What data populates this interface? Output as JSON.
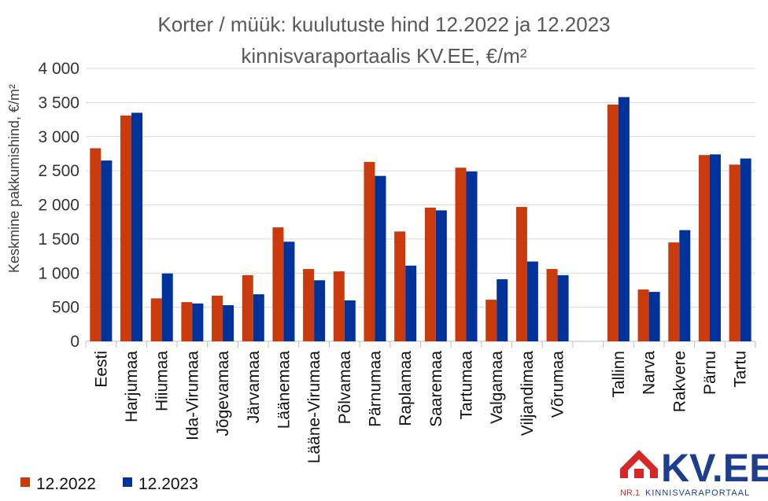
{
  "chart_data": {
    "type": "bar",
    "title": "Korter / müük: kuulutuste hind 12.2022 ja 12.2023",
    "subtitle": "kinnisvaraportaalis KV.EE, €/m²",
    "ylabel": "Keskmine pakkumishind, €/m²",
    "xlabel": "",
    "ylim": [
      0,
      4000
    ],
    "y_ticks": [
      0,
      500,
      1000,
      1500,
      2000,
      2500,
      3000,
      3500,
      4000
    ],
    "y_tick_labels": [
      "0",
      "500",
      "1 000",
      "1 500",
      "2 000",
      "2 500",
      "3 000",
      "3 500",
      "4 000"
    ],
    "grid": true,
    "legend_position": "bottom-left",
    "categories": [
      "Eesti",
      "Harjumaa",
      "Hiiumaa",
      "Ida-Virumaa",
      "Jõgevamaa",
      "Järvamaa",
      "Läänemaa",
      "Lääne-Virumaa",
      "Põlvamaa",
      "Pärnumaa",
      "Raplamaa",
      "Saaremaa",
      "Tartumaa",
      "Valgamaa",
      "Viljandimaa",
      "Võrumaa",
      "",
      "Tallinn",
      "Narva",
      "Rakvere",
      "Pärnu",
      "Tartu"
    ],
    "series": [
      {
        "name": "12.2022",
        "color": "#c93a0c",
        "values": [
          2830,
          3310,
          630,
          575,
          670,
          970,
          1670,
          1060,
          1025,
          2630,
          1610,
          1960,
          2545,
          610,
          1970,
          1060,
          null,
          3470,
          760,
          1450,
          2730,
          2590
        ]
      },
      {
        "name": "12.2023",
        "color": "#00329b",
        "values": [
          2650,
          3350,
          995,
          555,
          530,
          690,
          1460,
          895,
          600,
          2425,
          1110,
          1920,
          2490,
          910,
          1170,
          970,
          null,
          3580,
          725,
          1630,
          2740,
          2680
        ]
      }
    ]
  },
  "logo": {
    "name": "KV.EE",
    "nr": "NR.1",
    "tagline": "KINNISVARAPORTAAL",
    "red": "#d62828",
    "blue": "#1e3d8f"
  }
}
